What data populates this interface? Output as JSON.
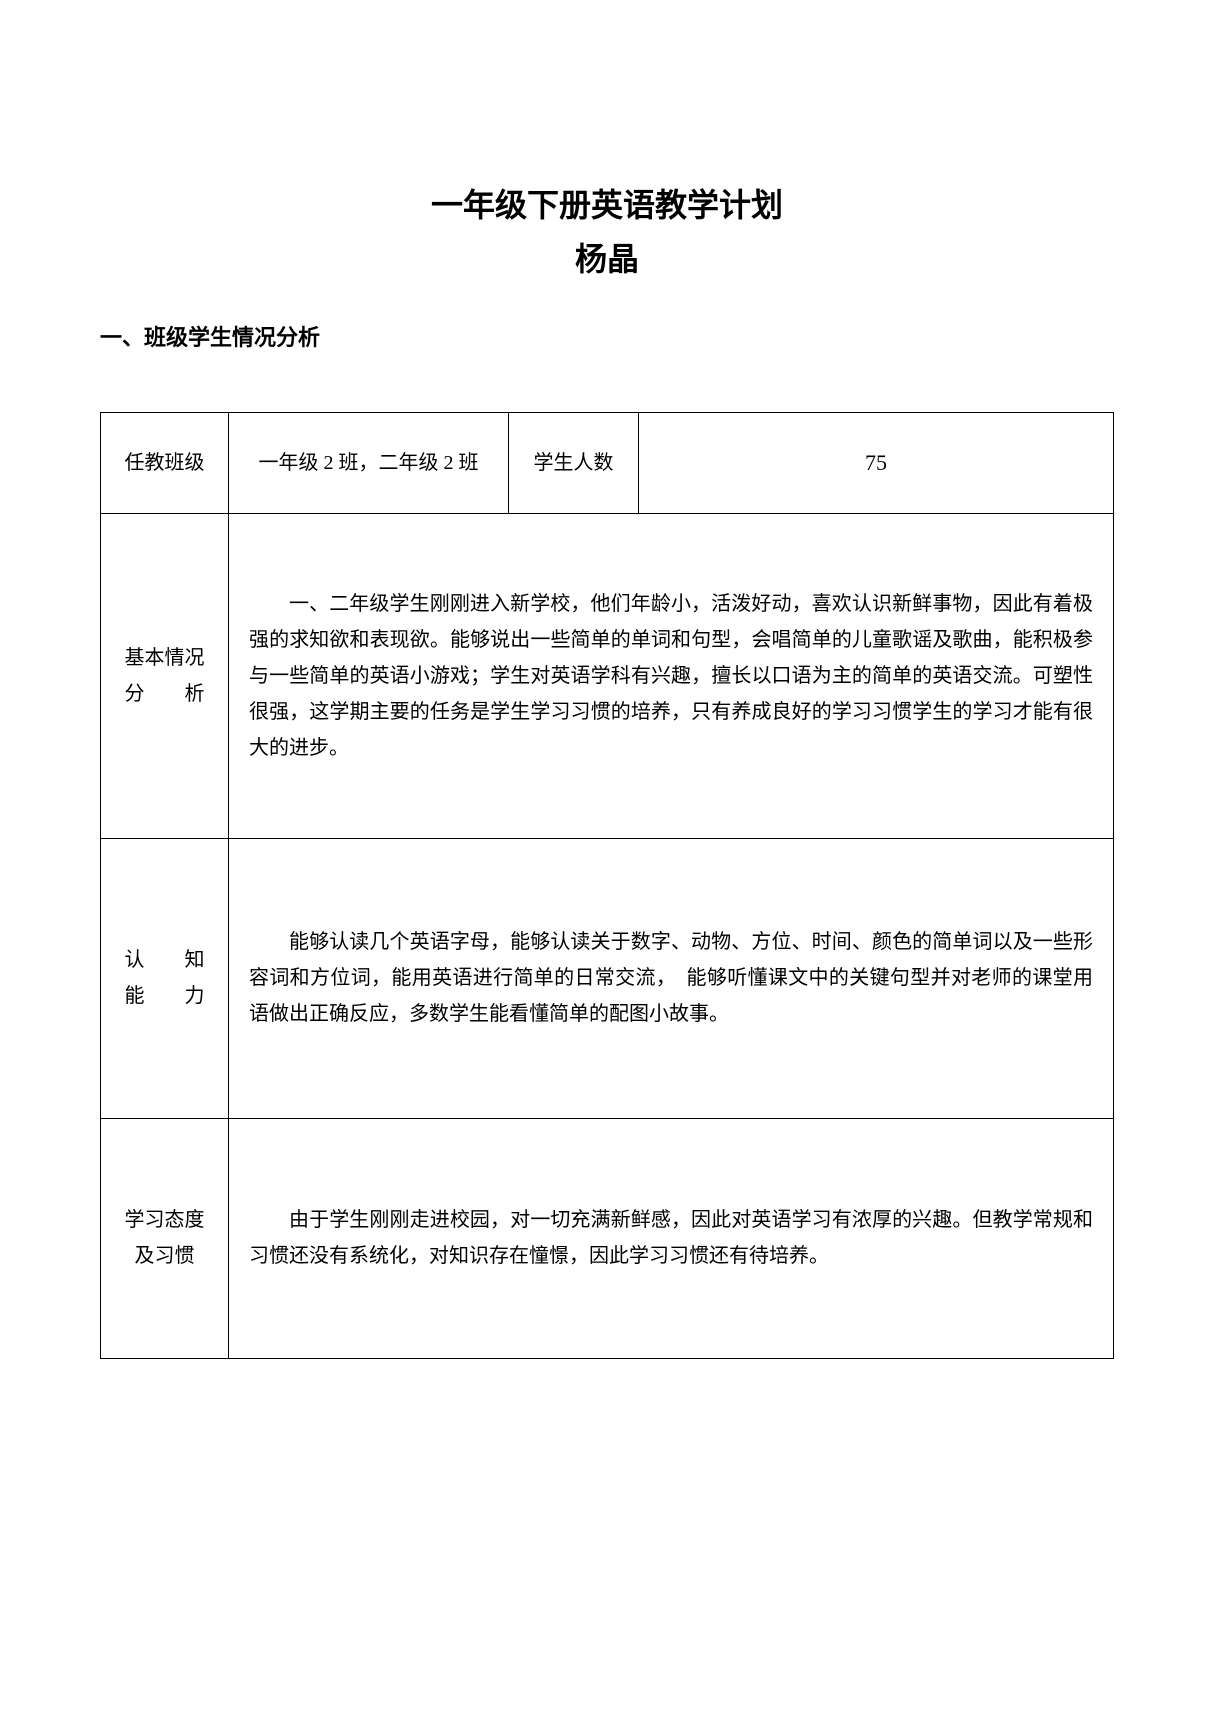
{
  "title": "一年级下册英语教学计划",
  "author": "杨晶",
  "section_heading": "一、班级学生情况分析",
  "table": {
    "row1": {
      "label1": "任教班级",
      "classes": "一年级 2 班，二年级 2 班",
      "label2": "学生人数",
      "count": "75"
    },
    "row2": {
      "label": "基本情况分　　析",
      "content": "一、二年级学生刚刚进入新学校，他们年龄小，活泼好动，喜欢认识新鲜事物，因此有着极强的求知欲和表现欲。能够说出一些简单的单词和句型，会唱简单的儿童歌谣及歌曲，能积极参与一些简单的英语小游戏；学生对英语学科有兴趣，擅长以口语为主的简单的英语交流。可塑性很强，这学期主要的任务是学生学习习惯的培养，只有养成良好的学习习惯学生的学习才能有很大的进步。"
    },
    "row3": {
      "label": "认　　知能　　力",
      "content": "能够认读几个英语字母，能够认读关于数字、动物、方位、时间、颜色的简单词以及一些形容词和方位词，能用英语进行简单的日常交流，　能够听懂课文中的关键句型并对老师的课堂用语做出正确反应，多数学生能看懂简单的配图小故事。"
    },
    "row4": {
      "label": "学习态度及习惯",
      "content": "由于学生刚刚走进校园，对一切充满新鲜感，因此对英语学习有浓厚的兴趣。但教学常规和习惯还没有系统化，对知识存在憧憬，因此学习习惯还有待培养。"
    }
  }
}
